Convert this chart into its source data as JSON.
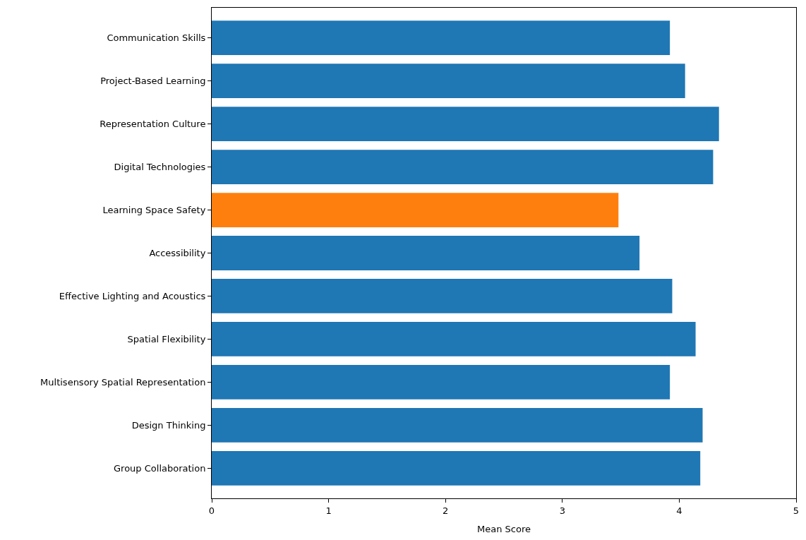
{
  "chart_data": {
    "type": "bar",
    "orientation": "horizontal",
    "xlabel": "Mean Score",
    "categories": [
      "Communication Skills",
      "Project-Based Learning",
      "Representation Culture",
      "Digital Technologies",
      "Learning Space Safety",
      "Accessibility",
      "Effective Lighting and Acoustics",
      "Spatial Flexibility",
      "Multisensory Spatial Representation",
      "Design Thinking",
      "Group Collaboration"
    ],
    "values": [
      3.92,
      4.05,
      4.34,
      4.29,
      3.48,
      3.66,
      3.94,
      4.14,
      3.92,
      4.2,
      4.18
    ],
    "colors": [
      "#1f77b4",
      "#1f77b4",
      "#1f77b4",
      "#1f77b4",
      "#ff7f0e",
      "#1f77b4",
      "#1f77b4",
      "#1f77b4",
      "#1f77b4",
      "#1f77b4",
      "#1f77b4"
    ],
    "xlim": [
      0,
      5
    ],
    "xticks": [
      0,
      1,
      2,
      3,
      4,
      5
    ],
    "legend": false
  }
}
